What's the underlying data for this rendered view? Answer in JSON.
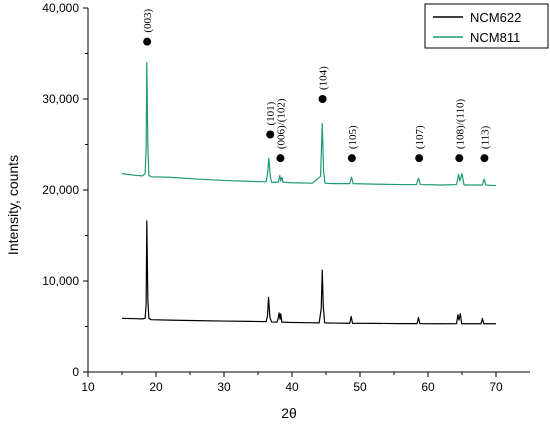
{
  "chart_data": {
    "type": "line",
    "xlabel": "2θ",
    "ylabel": "Intensity, counts",
    "xlim": [
      10,
      75
    ],
    "ylim": [
      0,
      40000
    ],
    "xticks": [
      "10",
      "20",
      "30",
      "40",
      "50",
      "60",
      "70"
    ],
    "yticks": [
      "0",
      "10,000",
      "20,000",
      "30,000",
      "40,000"
    ],
    "legend_position": "top-right",
    "series": [
      {
        "name": "NCM622",
        "color": "#000000",
        "points": [
          [
            15,
            5900
          ],
          [
            16,
            5880
          ],
          [
            17,
            5860
          ],
          [
            18,
            5840
          ],
          [
            18.4,
            5900
          ],
          [
            18.55,
            7500
          ],
          [
            18.65,
            16600
          ],
          [
            18.8,
            8000
          ],
          [
            18.95,
            5900
          ],
          [
            19.3,
            5750
          ],
          [
            22,
            5700
          ],
          [
            26,
            5650
          ],
          [
            30,
            5600
          ],
          [
            34,
            5560
          ],
          [
            36.2,
            5540
          ],
          [
            36.4,
            6200
          ],
          [
            36.55,
            8200
          ],
          [
            36.75,
            6000
          ],
          [
            37,
            5500
          ],
          [
            37.8,
            5480
          ],
          [
            38.0,
            6000
          ],
          [
            38.1,
            6500
          ],
          [
            38.25,
            5800
          ],
          [
            38.35,
            6400
          ],
          [
            38.5,
            5480
          ],
          [
            39.5,
            5450
          ],
          [
            42,
            5420
          ],
          [
            44,
            5400
          ],
          [
            44.3,
            7000
          ],
          [
            44.45,
            11200
          ],
          [
            44.6,
            7200
          ],
          [
            44.8,
            5400
          ],
          [
            46,
            5380
          ],
          [
            48.5,
            5360
          ],
          [
            48.7,
            6100
          ],
          [
            48.9,
            5360
          ],
          [
            52,
            5340
          ],
          [
            56,
            5320
          ],
          [
            58.4,
            5320
          ],
          [
            58.6,
            6000
          ],
          [
            58.8,
            5320
          ],
          [
            62,
            5300
          ],
          [
            64.2,
            5320
          ],
          [
            64.4,
            6300
          ],
          [
            64.55,
            5700
          ],
          [
            64.75,
            6400
          ],
          [
            64.95,
            5300
          ],
          [
            66,
            5300
          ],
          [
            67.8,
            5300
          ],
          [
            68.0,
            5900
          ],
          [
            68.2,
            5300
          ],
          [
            69.5,
            5300
          ],
          [
            70,
            5300
          ]
        ]
      },
      {
        "name": "NCM811",
        "color": "#1e9a78",
        "points": [
          [
            15,
            21800
          ],
          [
            16,
            21700
          ],
          [
            17,
            21600
          ],
          [
            18,
            21550
          ],
          [
            18.4,
            21800
          ],
          [
            18.55,
            24500
          ],
          [
            18.65,
            34000
          ],
          [
            18.8,
            25000
          ],
          [
            18.95,
            21600
          ],
          [
            19.3,
            21450
          ],
          [
            22,
            21400
          ],
          [
            26,
            21200
          ],
          [
            30,
            21050
          ],
          [
            34,
            20950
          ],
          [
            36.2,
            20900
          ],
          [
            36.4,
            21800
          ],
          [
            36.6,
            23500
          ],
          [
            36.8,
            21500
          ],
          [
            37,
            20850
          ],
          [
            38.0,
            20850
          ],
          [
            38.2,
            21600
          ],
          [
            38.35,
            21000
          ],
          [
            38.5,
            21400
          ],
          [
            38.7,
            20850
          ],
          [
            40,
            20800
          ],
          [
            43,
            20750
          ],
          [
            44.2,
            21500
          ],
          [
            44.45,
            27300
          ],
          [
            44.65,
            22000
          ],
          [
            44.85,
            20750
          ],
          [
            46,
            20700
          ],
          [
            48.5,
            20700
          ],
          [
            48.75,
            21400
          ],
          [
            49,
            20700
          ],
          [
            52,
            20650
          ],
          [
            56,
            20600
          ],
          [
            58.3,
            20600
          ],
          [
            58.6,
            21300
          ],
          [
            58.9,
            20600
          ],
          [
            62,
            20550
          ],
          [
            64.2,
            20600
          ],
          [
            64.5,
            21700
          ],
          [
            64.7,
            21000
          ],
          [
            65.0,
            21800
          ],
          [
            65.3,
            20550
          ],
          [
            66,
            20550
          ],
          [
            68,
            20550
          ],
          [
            68.25,
            21200
          ],
          [
            68.5,
            20550
          ],
          [
            69.5,
            20500
          ],
          [
            70,
            20500
          ]
        ]
      }
    ],
    "markers": [
      {
        "x": 18.7,
        "y": 36300,
        "label": "(003)"
      },
      {
        "x": 36.8,
        "y": 26100,
        "label": "(101)"
      },
      {
        "x": 38.3,
        "y": 23500,
        "label": "(006)/(102)"
      },
      {
        "x": 44.5,
        "y": 30000,
        "label": "(104)"
      },
      {
        "x": 48.8,
        "y": 23500,
        "label": "(105)"
      },
      {
        "x": 58.7,
        "y": 23500,
        "label": "(107)"
      },
      {
        "x": 64.6,
        "y": 23500,
        "label": "(108)/(110)"
      },
      {
        "x": 68.3,
        "y": 23500,
        "label": "(113)"
      }
    ]
  }
}
